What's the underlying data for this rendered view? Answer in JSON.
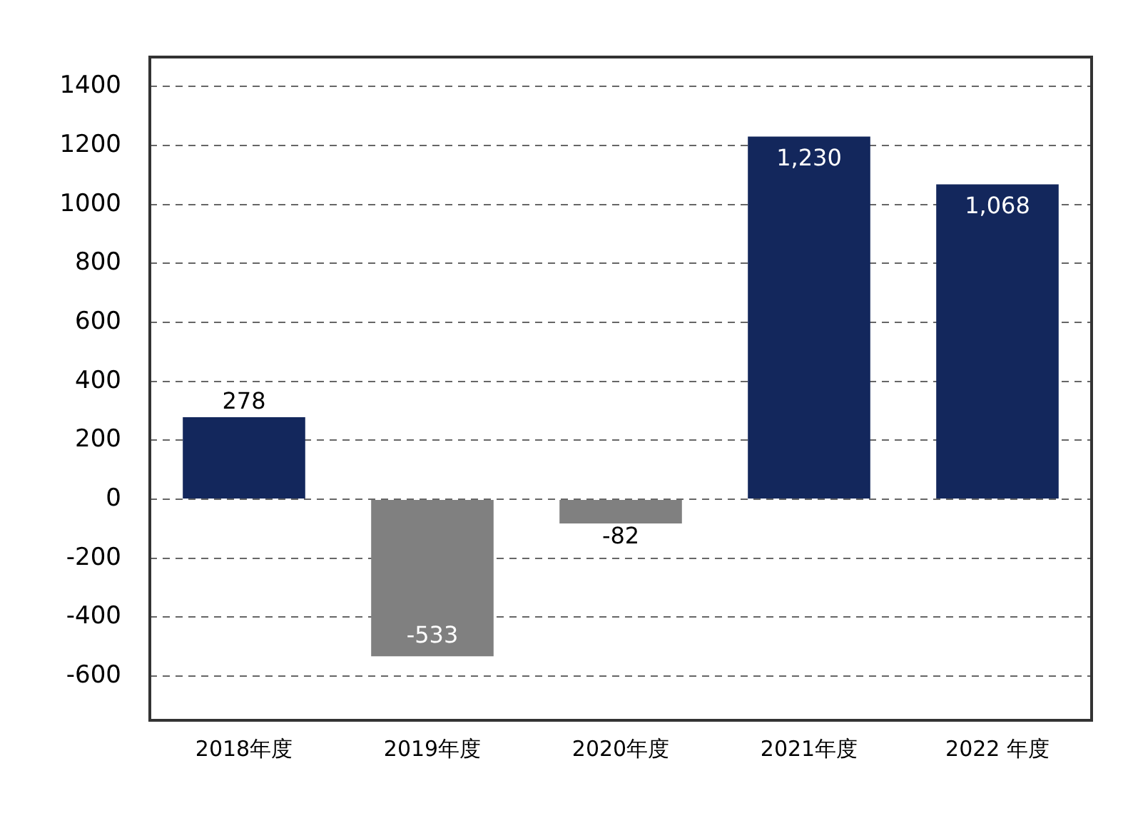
{
  "chart_data": {
    "type": "bar",
    "categories": [
      "2018年度",
      "2019年度",
      "2020年度",
      "2021年度",
      "2022 年度"
    ],
    "values": [
      278,
      -533,
      -82,
      1230,
      1068
    ],
    "colors": [
      "#13275c",
      "#808080",
      "#808080",
      "#13275c",
      "#13275c"
    ],
    "value_labels": [
      "278",
      "-533",
      "-82",
      "1,230",
      "1,068"
    ],
    "ylim": [
      -750,
      1500
    ],
    "yticks": [
      -600,
      -400,
      -200,
      0,
      200,
      400,
      600,
      800,
      1000,
      1200,
      1400
    ],
    "grid": "y",
    "line_style": "dashed",
    "legend": false
  }
}
